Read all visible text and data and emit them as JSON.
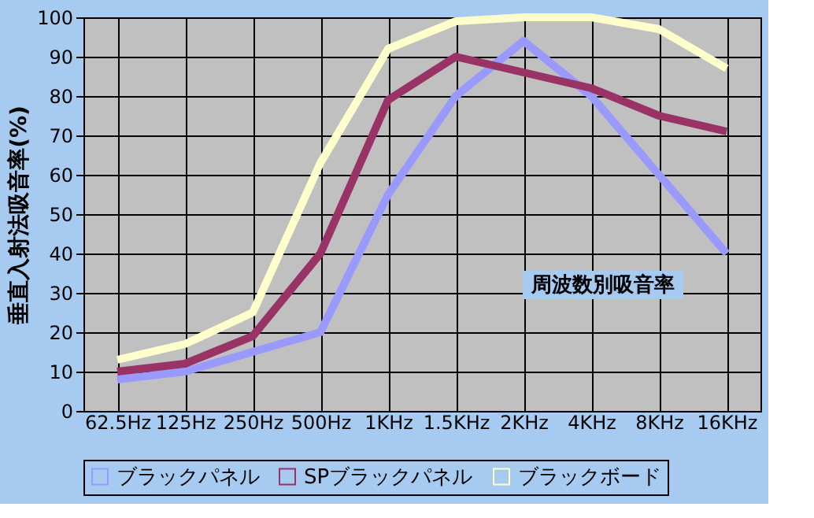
{
  "chart_data": {
    "type": "line",
    "ylabel": "垂直入射法吸音率(%)",
    "categories": [
      "62.5Hz",
      "125Hz",
      "250Hz",
      "500Hz",
      "1KHz",
      "1.5KHz",
      "2KHz",
      "4KHz",
      "8KHz",
      "16KHz"
    ],
    "series": [
      {
        "name": "ブラックパネル",
        "color": "#9999ff",
        "values": [
          8,
          10,
          15,
          20,
          55,
          80,
          94,
          80,
          60,
          40
        ]
      },
      {
        "name": "SPブラックパネル",
        "color": "#993366",
        "values": [
          10,
          12,
          19,
          40,
          79,
          90,
          86,
          82,
          75,
          71
        ]
      },
      {
        "name": "ブラックボード",
        "color": "#ffffcc",
        "values": [
          13,
          17,
          25,
          63,
          92,
          99,
          100,
          100,
          97,
          87
        ]
      }
    ],
    "ylim": [
      0,
      100
    ],
    "yticks": [
      0,
      10,
      20,
      30,
      40,
      50,
      60,
      70,
      80,
      90,
      100
    ],
    "grid": true,
    "legend": "bottom",
    "marker": "none",
    "line_style": "solid",
    "annotations": [
      "周波数別吸音率"
    ]
  }
}
